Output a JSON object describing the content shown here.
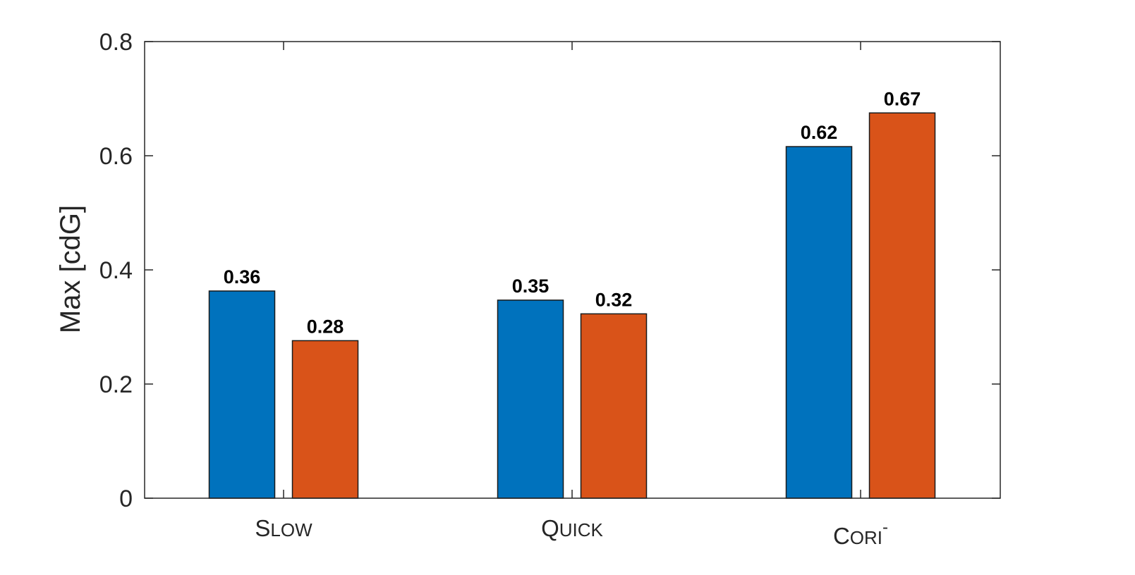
{
  "chart_data": {
    "type": "bar",
    "categories": [
      {
        "cap": "S",
        "rest": "LOW",
        "sup": ""
      },
      {
        "cap": "Q",
        "rest": "UICK",
        "sup": ""
      },
      {
        "cap": "C",
        "rest": "ORI",
        "sup": "-"
      }
    ],
    "series": [
      {
        "values": [
          0.36,
          0.35,
          0.62
        ],
        "heights": [
          0.363,
          0.347,
          0.616
        ],
        "color": "#0072BD"
      },
      {
        "values": [
          0.28,
          0.32,
          0.67
        ],
        "heights": [
          0.276,
          0.323,
          0.675
        ],
        "color": "#D95319"
      }
    ],
    "ylabel": "Max [cdG]",
    "ylim": [
      0,
      0.8
    ],
    "yticks": [
      0,
      0.2,
      0.4,
      0.6,
      0.8
    ],
    "ytick_labels": [
      "0",
      "0.2",
      "0.4",
      "0.6",
      "0.8"
    ],
    "grid": false,
    "legend": "none",
    "frame_color": "#262626"
  }
}
